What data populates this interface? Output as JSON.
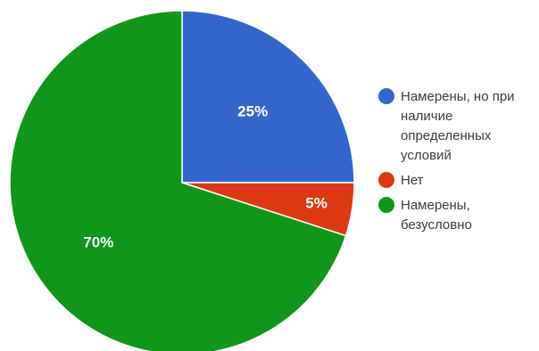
{
  "chart_data": {
    "type": "pie",
    "start_angle_deg": 0,
    "direction": "clockwise",
    "legend_position": "right",
    "slices": [
      {
        "label": "Намерены, но при наличие определенных условий",
        "value": 25,
        "value_label": "25%",
        "color": "#3366cc"
      },
      {
        "label": "Нет",
        "value": 5,
        "value_label": "5%",
        "color": "#dc3912"
      },
      {
        "label": "Намерены, безусловно",
        "value": 70,
        "value_label": "70%",
        "color": "#109618"
      }
    ]
  }
}
